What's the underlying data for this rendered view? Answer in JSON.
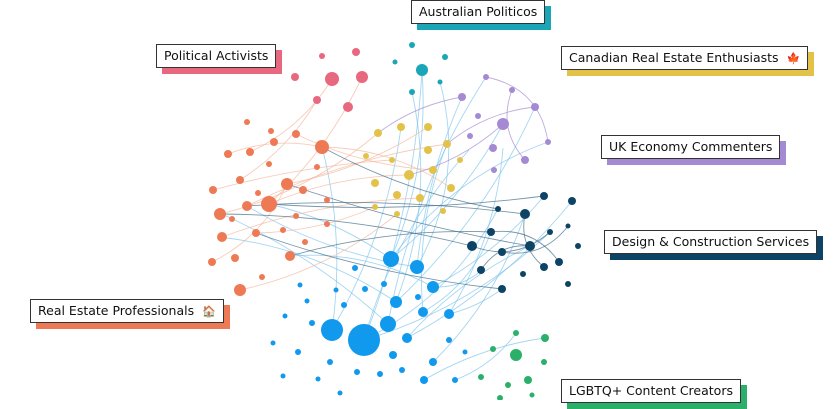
{
  "clusters": [
    {
      "id": "aus",
      "label": "Australian Politicos",
      "color": "#1aa6b7",
      "icon": ""
    },
    {
      "id": "act",
      "label": "Political Activists",
      "color": "#e8697f",
      "icon": ""
    },
    {
      "id": "can",
      "label": "Canadian Real Estate Enthusiasts",
      "color": "#e3c24a",
      "icon": "🍁"
    },
    {
      "id": "uk",
      "label": "UK Economy Commenters",
      "color": "#a48ad3",
      "icon": ""
    },
    {
      "id": "des",
      "label": "Design & Construction Services",
      "color": "#0d4466",
      "icon": ""
    },
    {
      "id": "rep",
      "label": "Real Estate Professionals",
      "color": "#ee7a55",
      "icon": "🏠"
    },
    {
      "id": "lgb",
      "label": "LGBTQ+ Content Creators",
      "color": "#2bb06a",
      "icon": ""
    }
  ],
  "extra_colors": {
    "big_blue": "#1199ee",
    "edge_blue": "#7ec4ec",
    "edge_orange": "#f3b79c",
    "edge_navy": "#3d6a86"
  }
}
